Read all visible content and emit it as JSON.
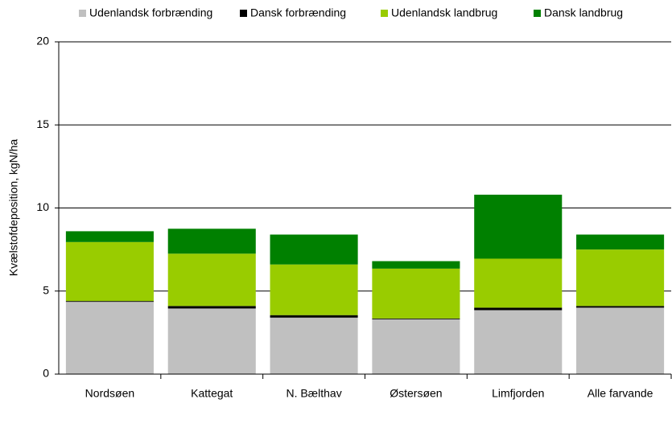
{
  "chart_data": {
    "type": "stacked_bar",
    "ylabel": "Kvælstofdeposition, kgN/ha",
    "categories": [
      "Nordsøen",
      "Kattegat",
      "N. Bælthav",
      "Østersøen",
      "Limfjorden",
      "Alle farvande"
    ],
    "series": [
      {
        "name": "Udenlandsk forbrænding",
        "color": "#c0c0c0",
        "values": [
          4.35,
          3.95,
          3.4,
          3.3,
          3.85,
          4.0
        ]
      },
      {
        "name": "Dansk forbrænding",
        "color": "#000000",
        "values": [
          0.05,
          0.15,
          0.15,
          0.05,
          0.15,
          0.1
        ]
      },
      {
        "name": "Udenlandsk landbrug",
        "color": "#99cc00",
        "values": [
          3.55,
          3.15,
          3.05,
          3.0,
          2.95,
          3.4
        ]
      },
      {
        "name": "Dansk landbrug",
        "color": "#008000",
        "values": [
          0.65,
          1.5,
          1.8,
          0.45,
          3.85,
          0.9
        ]
      }
    ],
    "ylim": [
      0,
      20
    ],
    "yticks": [
      0,
      5,
      10,
      15,
      20
    ],
    "grid": true,
    "legend": "top"
  }
}
